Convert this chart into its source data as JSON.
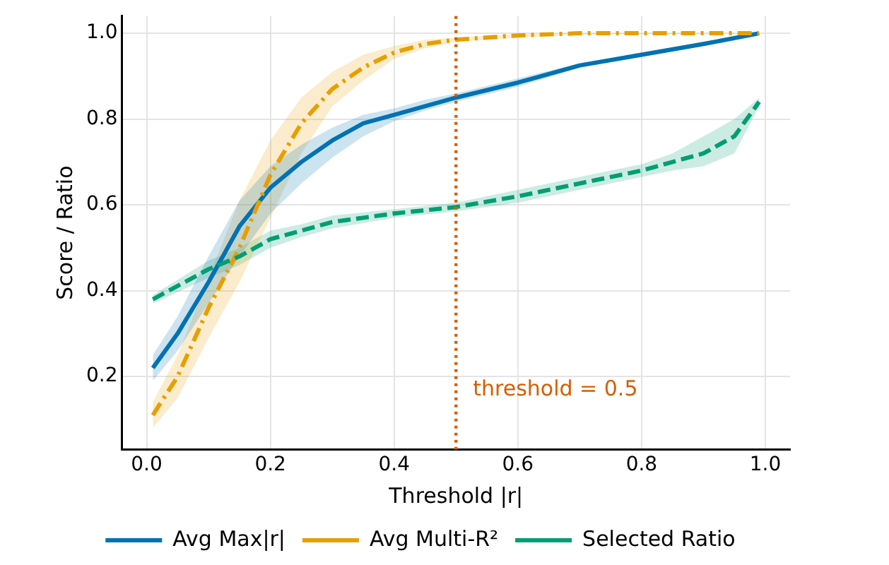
{
  "chart_data": {
    "type": "line",
    "xlabel": "Threshold |r|",
    "ylabel": "Score / Ratio",
    "xlim": [
      -0.04,
      1.04
    ],
    "ylim": [
      0.03,
      1.04
    ],
    "xticks": [
      {
        "value": 0,
        "label": "0.0"
      },
      0.2,
      0.4,
      0.6,
      0.8,
      {
        "value": 1,
        "label": "1.0"
      }
    ],
    "yticks": [
      0.2,
      0.4,
      0.6,
      0.8,
      {
        "value": 1,
        "label": "1.0"
      }
    ],
    "grid": true,
    "legend": "bottom",
    "marker": "none",
    "series": [
      {
        "name": "Avg Max|r|",
        "color": "#0072b2",
        "line_style": "solid",
        "x": [
          0.01,
          0.05,
          0.1,
          0.15,
          0.2,
          0.25,
          0.3,
          0.35,
          0.4,
          0.45,
          0.5,
          0.6,
          0.7,
          0.8,
          0.9,
          0.99
        ],
        "values": [
          0.22,
          0.3,
          0.42,
          0.55,
          0.64,
          0.7,
          0.75,
          0.79,
          0.81,
          0.83,
          0.85,
          0.885,
          0.925,
          0.95,
          0.975,
          1.0
        ],
        "lower": [
          0.19,
          0.26,
          0.37,
          0.48,
          0.58,
          0.65,
          0.71,
          0.76,
          0.795,
          0.82,
          0.84,
          0.875,
          0.92,
          0.945,
          0.97,
          0.995
        ],
        "upper": [
          0.25,
          0.34,
          0.48,
          0.61,
          0.69,
          0.74,
          0.78,
          0.81,
          0.825,
          0.845,
          0.86,
          0.895,
          0.93,
          0.955,
          0.98,
          1.0
        ]
      },
      {
        "name": "Avg Multi-R²",
        "color": "#e69f00",
        "line_style": "dashdot",
        "x": [
          0.01,
          0.05,
          0.1,
          0.15,
          0.2,
          0.25,
          0.3,
          0.35,
          0.4,
          0.45,
          0.5,
          0.6,
          0.7,
          0.8,
          0.9,
          0.99
        ],
        "values": [
          0.11,
          0.2,
          0.36,
          0.5,
          0.67,
          0.79,
          0.87,
          0.92,
          0.955,
          0.975,
          0.985,
          0.995,
          1.0,
          1.0,
          1.0,
          1.0
        ],
        "lower": [
          0.08,
          0.15,
          0.29,
          0.42,
          0.57,
          0.72,
          0.83,
          0.89,
          0.94,
          0.965,
          0.98,
          0.99,
          0.997,
          0.998,
          0.999,
          1.0
        ],
        "upper": [
          0.14,
          0.25,
          0.43,
          0.61,
          0.75,
          0.85,
          0.91,
          0.95,
          0.97,
          0.985,
          0.99,
          0.998,
          1.0,
          1.0,
          1.0,
          1.0
        ]
      },
      {
        "name": "Selected Ratio",
        "color": "#009e73",
        "line_style": "dashed",
        "x": [
          0.01,
          0.1,
          0.15,
          0.2,
          0.25,
          0.3,
          0.4,
          0.5,
          0.6,
          0.7,
          0.8,
          0.85,
          0.9,
          0.95,
          0.99
        ],
        "values": [
          0.38,
          0.45,
          0.48,
          0.52,
          0.54,
          0.56,
          0.58,
          0.595,
          0.62,
          0.65,
          0.68,
          0.7,
          0.72,
          0.76,
          0.84
        ],
        "lower": [
          0.37,
          0.43,
          0.46,
          0.5,
          0.525,
          0.545,
          0.57,
          0.585,
          0.605,
          0.635,
          0.665,
          0.68,
          0.69,
          0.72,
          0.83
        ],
        "upper": [
          0.39,
          0.47,
          0.5,
          0.54,
          0.555,
          0.575,
          0.59,
          0.605,
          0.635,
          0.665,
          0.695,
          0.72,
          0.76,
          0.8,
          0.85
        ]
      }
    ],
    "ref_lines": [
      {
        "axis": "x",
        "value": 0.5,
        "label": "threshold = 0.5",
        "color": "#d55e00",
        "line_style": "dotted"
      }
    ]
  }
}
